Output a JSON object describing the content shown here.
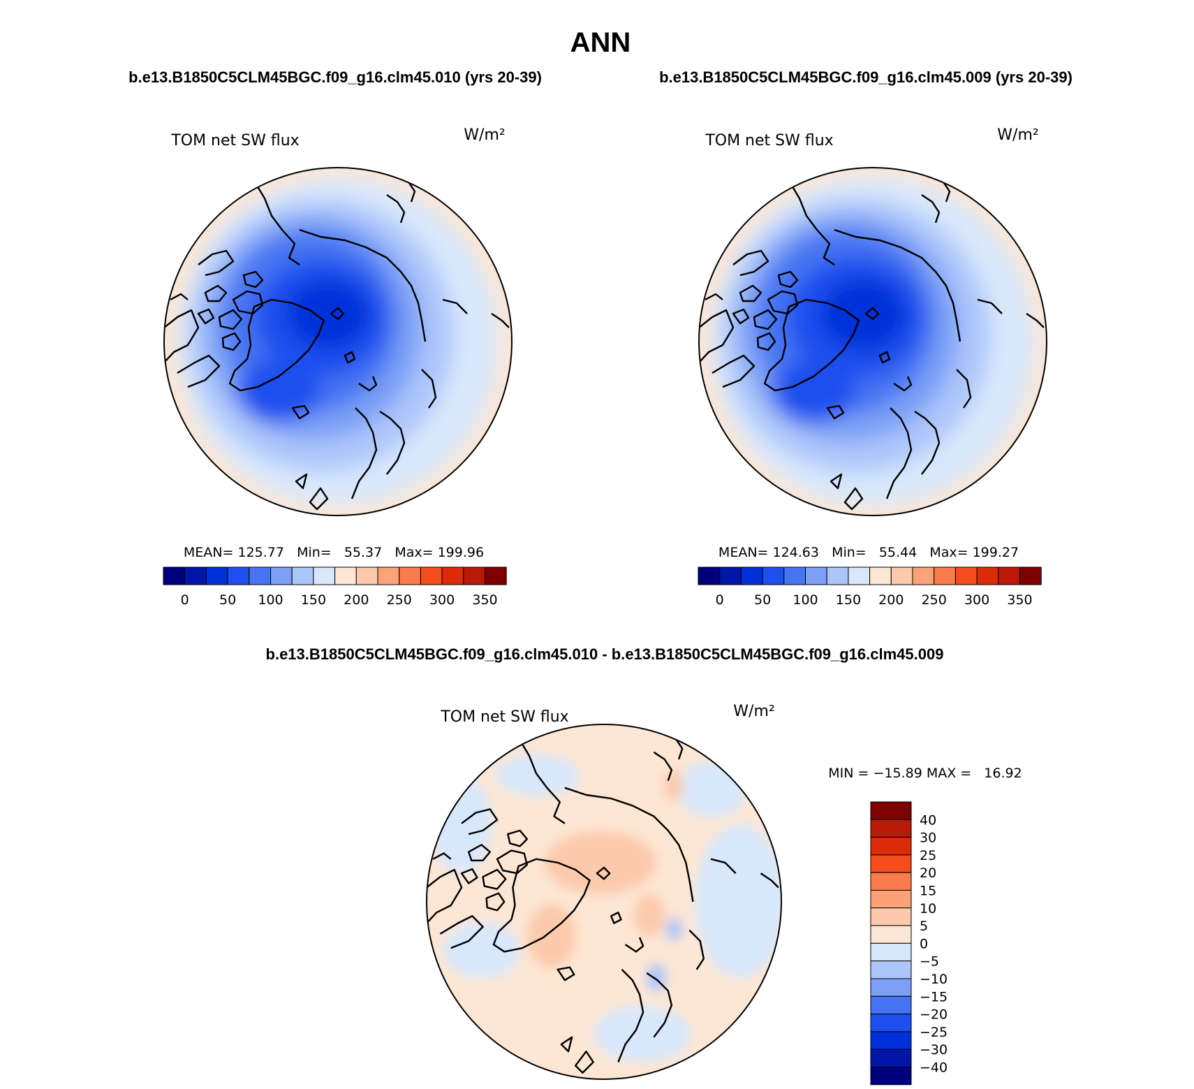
{
  "title": "ANN",
  "colors": {
    "abs_levels": [
      "#00007f",
      "#0016a9",
      "#0030d9",
      "#1f4fee",
      "#4774f2",
      "#7ca0f6",
      "#adc6fa",
      "#d8e8fc",
      "#fde7d4",
      "#fcc9ac",
      "#fba279",
      "#fa7c4b",
      "#f54c1d",
      "#db2b09",
      "#b91906",
      "#7e0000"
    ],
    "diff_levels": [
      "#00007f",
      "#0016a9",
      "#0030d9",
      "#1f4fee",
      "#4774f2",
      "#7ca0f6",
      "#adc6fa",
      "#d8e8fc",
      "#fde7d4",
      "#fcc9ac",
      "#fba279",
      "#fa7c4b",
      "#f54c1d",
      "#db2b09",
      "#b91906",
      "#7e0000"
    ]
  },
  "panels": [
    {
      "case_title": "b.e13.B1850C5CLM45BGC.f09_g16.clm45.010 (yrs 20-39)",
      "variable": "TOM net SW flux",
      "units": "W/m²",
      "stats": "MEAN= 125.77   Min=   55.37   Max= 199.96",
      "colorbar_labels": [
        "0",
        "50",
        "100",
        "150",
        "200",
        "250",
        "300",
        "350"
      ]
    },
    {
      "case_title": "b.e13.B1850C5CLM45BGC.f09_g16.clm45.009 (yrs 20-39)",
      "variable": "TOM net SW flux",
      "units": "W/m²",
      "stats": "MEAN= 124.63   Min=   55.44   Max= 199.27",
      "colorbar_labels": [
        "0",
        "50",
        "100",
        "150",
        "200",
        "250",
        "300",
        "350"
      ]
    }
  ],
  "difference": {
    "title": "b.e13.B1850C5CLM45BGC.f09_g16.clm45.010 - b.e13.B1850C5CLM45BGC.f09_g16.clm45.009",
    "variable": "TOM net SW flux",
    "units": "W/m²",
    "stats": "MIN = −15.89 MAX =   16.92",
    "colorbar_labels": [
      "40",
      "30",
      "25",
      "20",
      "15",
      "10",
      "5",
      "0",
      "−5",
      "−10",
      "−15",
      "−20",
      "−25",
      "−30",
      "−40"
    ]
  }
}
